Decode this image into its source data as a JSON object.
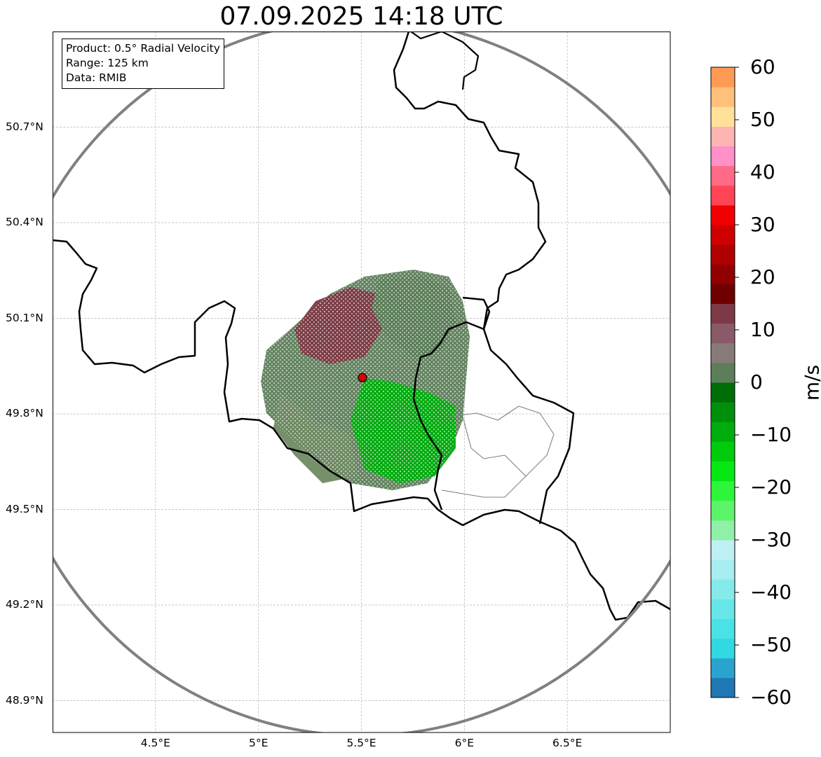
{
  "title": "07.09.2025 14:18 UTC",
  "infobox": {
    "product": "Product: 0.5° Radial Velocity",
    "range": "Range: 125 km",
    "source": "Data: RMIB"
  },
  "map": {
    "lon_range": [
      4.0,
      7.0
    ],
    "lat_range": [
      48.8,
      51.0
    ],
    "lat_ticks": [
      "50.7°N",
      "50.4°N",
      "50.1°N",
      "49.8°N",
      "49.5°N",
      "49.2°N",
      "48.9°N"
    ],
    "lat_values": [
      50.7,
      50.4,
      50.1,
      49.8,
      49.5,
      49.2,
      48.9
    ],
    "lon_ticks": [
      "4.5°E",
      "5°E",
      "5.5°E",
      "6°E",
      "6.5°E"
    ],
    "lon_values": [
      4.5,
      5.0,
      5.5,
      6.0,
      6.5
    ],
    "radar_site": {
      "lon": 5.505,
      "lat": 49.914
    },
    "range_ring_km": 125,
    "colors": {
      "range_ring": "#808080",
      "border": "#000000",
      "admin_border": "#808080",
      "site": "#e00000"
    }
  },
  "colorbar": {
    "label": "m/s",
    "ticks": [
      "60",
      "50",
      "40",
      "30",
      "20",
      "10",
      "0",
      "−10",
      "−20",
      "−30",
      "−40",
      "−50",
      "−60"
    ],
    "tick_values": [
      60,
      50,
      40,
      30,
      20,
      10,
      0,
      -10,
      -20,
      -30,
      -40,
      -50,
      -60
    ],
    "range": [
      -60,
      60
    ],
    "colors": [
      "#1f77b4",
      "#2aa3cf",
      "#31d9e0",
      "#49e2e6",
      "#66e6e9",
      "#85eaea",
      "#a6eeef",
      "#bff0f3",
      "#90f0a8",
      "#5cf56a",
      "#2ef53a",
      "#06e813",
      "#00cc0d",
      "#00ad0d",
      "#008f0b",
      "#006e07",
      "#5d7e5a",
      "#877a79",
      "#8a5a68",
      "#7d3a46",
      "#6e0000",
      "#900000",
      "#b00000",
      "#d00000",
      "#f00000",
      "#ff4455",
      "#ff6b86",
      "#ff90c8",
      "#ffb4b4",
      "#ffe19a",
      "#ffc07a",
      "#ff9a55"
    ]
  },
  "chart_data": {
    "type": "heatmap",
    "title": "07.09.2025 14:18 UTC",
    "xlabel": "",
    "ylabel": "",
    "colorbar_label": "m/s",
    "value_range": [
      -60,
      60
    ],
    "lon_range": [
      4.0,
      7.0
    ],
    "lat_range": [
      48.8,
      51.0
    ],
    "regions": [
      {
        "lon": 5.4,
        "lat": 50.05,
        "velocity": 12
      },
      {
        "lon": 5.7,
        "lat": 50.1,
        "velocity": 2
      },
      {
        "lon": 5.35,
        "lat": 49.8,
        "velocity": 0
      },
      {
        "lon": 5.75,
        "lat": 49.75,
        "velocity": -10
      },
      {
        "lon": 5.9,
        "lat": 49.9,
        "velocity": -4
      }
    ]
  }
}
